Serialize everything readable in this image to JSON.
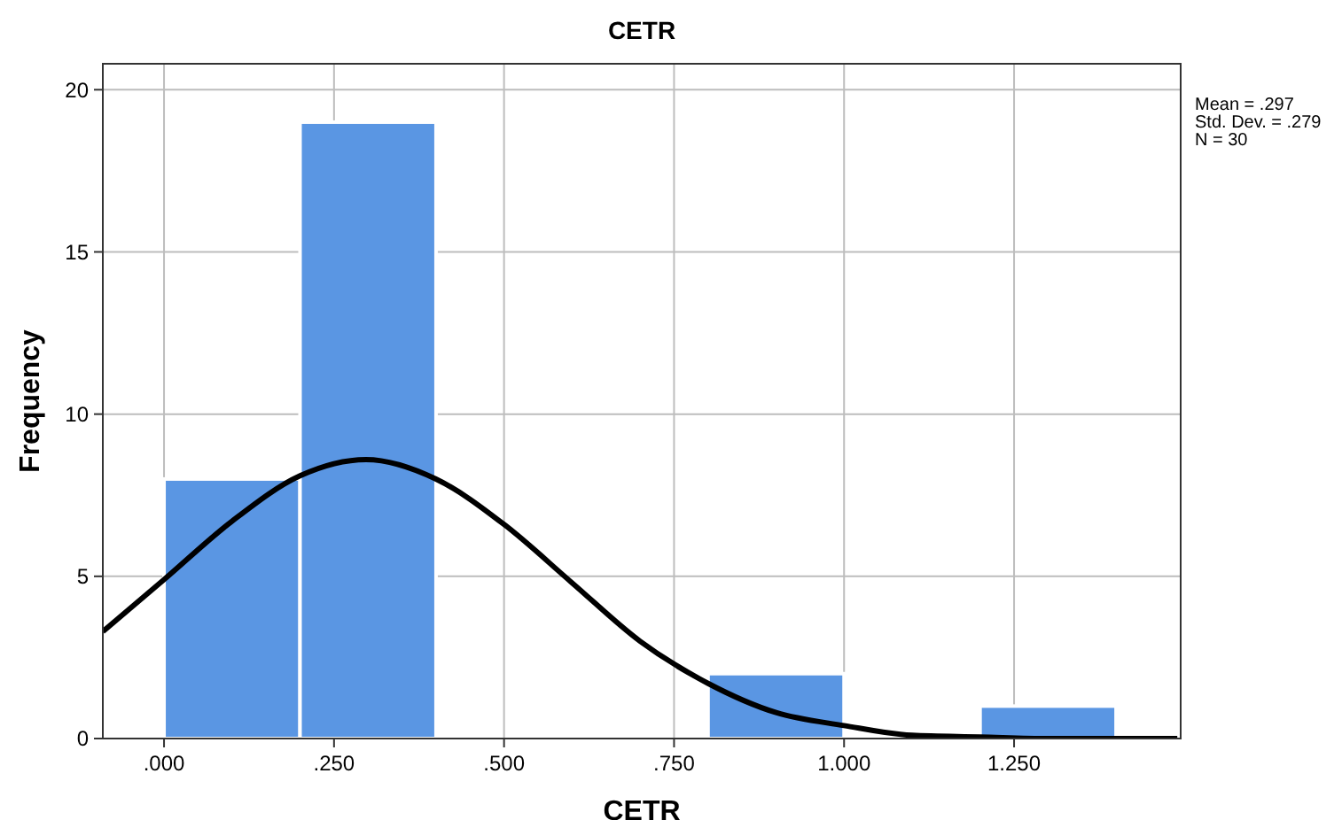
{
  "chart_data": {
    "type": "histogram",
    "title": "CETR",
    "xlabel": "CETR",
    "ylabel": "Frequency",
    "bins": [
      0,
      0.2,
      0.4,
      0.6,
      0.8,
      1.0,
      1.2,
      1.4
    ],
    "series": [
      {
        "type": "histogram",
        "color": "#5a96e3",
        "values": [
          8,
          19,
          0,
          0,
          2,
          0,
          1
        ]
      },
      {
        "type": "line",
        "color": "#000000",
        "x": [
          -0.09,
          0,
          0.1,
          0.2,
          0.297,
          0.4,
          0.5,
          0.6,
          0.7,
          0.8,
          0.9,
          1.0,
          1.1,
          1.2,
          1.3,
          1.4,
          1.49
        ],
        "values": [
          3.3,
          4.9,
          6.7,
          8.1,
          8.6,
          8.0,
          6.6,
          4.8,
          3.0,
          1.7,
          0.8,
          0.4,
          0.1,
          0.05,
          0,
          0,
          0
        ]
      }
    ],
    "xlim": [
      -0.09,
      1.495
    ],
    "ylim": [
      0,
      20.8
    ],
    "xticks": [
      {
        "value": 0,
        "label": ".000"
      },
      {
        "value": 0.25,
        "label": ".250"
      },
      {
        "value": 0.5,
        "label": ".500"
      },
      {
        "value": 0.75,
        "label": ".750"
      },
      {
        "value": 1.0,
        "label": "1.000"
      },
      {
        "value": 1.25,
        "label": "1.250"
      }
    ],
    "yticks": [
      0,
      5,
      10,
      15,
      20
    ],
    "grid": true,
    "annotations": [
      "Mean = .297",
      "Std. Dev. = .279",
      "N = 30"
    ]
  }
}
